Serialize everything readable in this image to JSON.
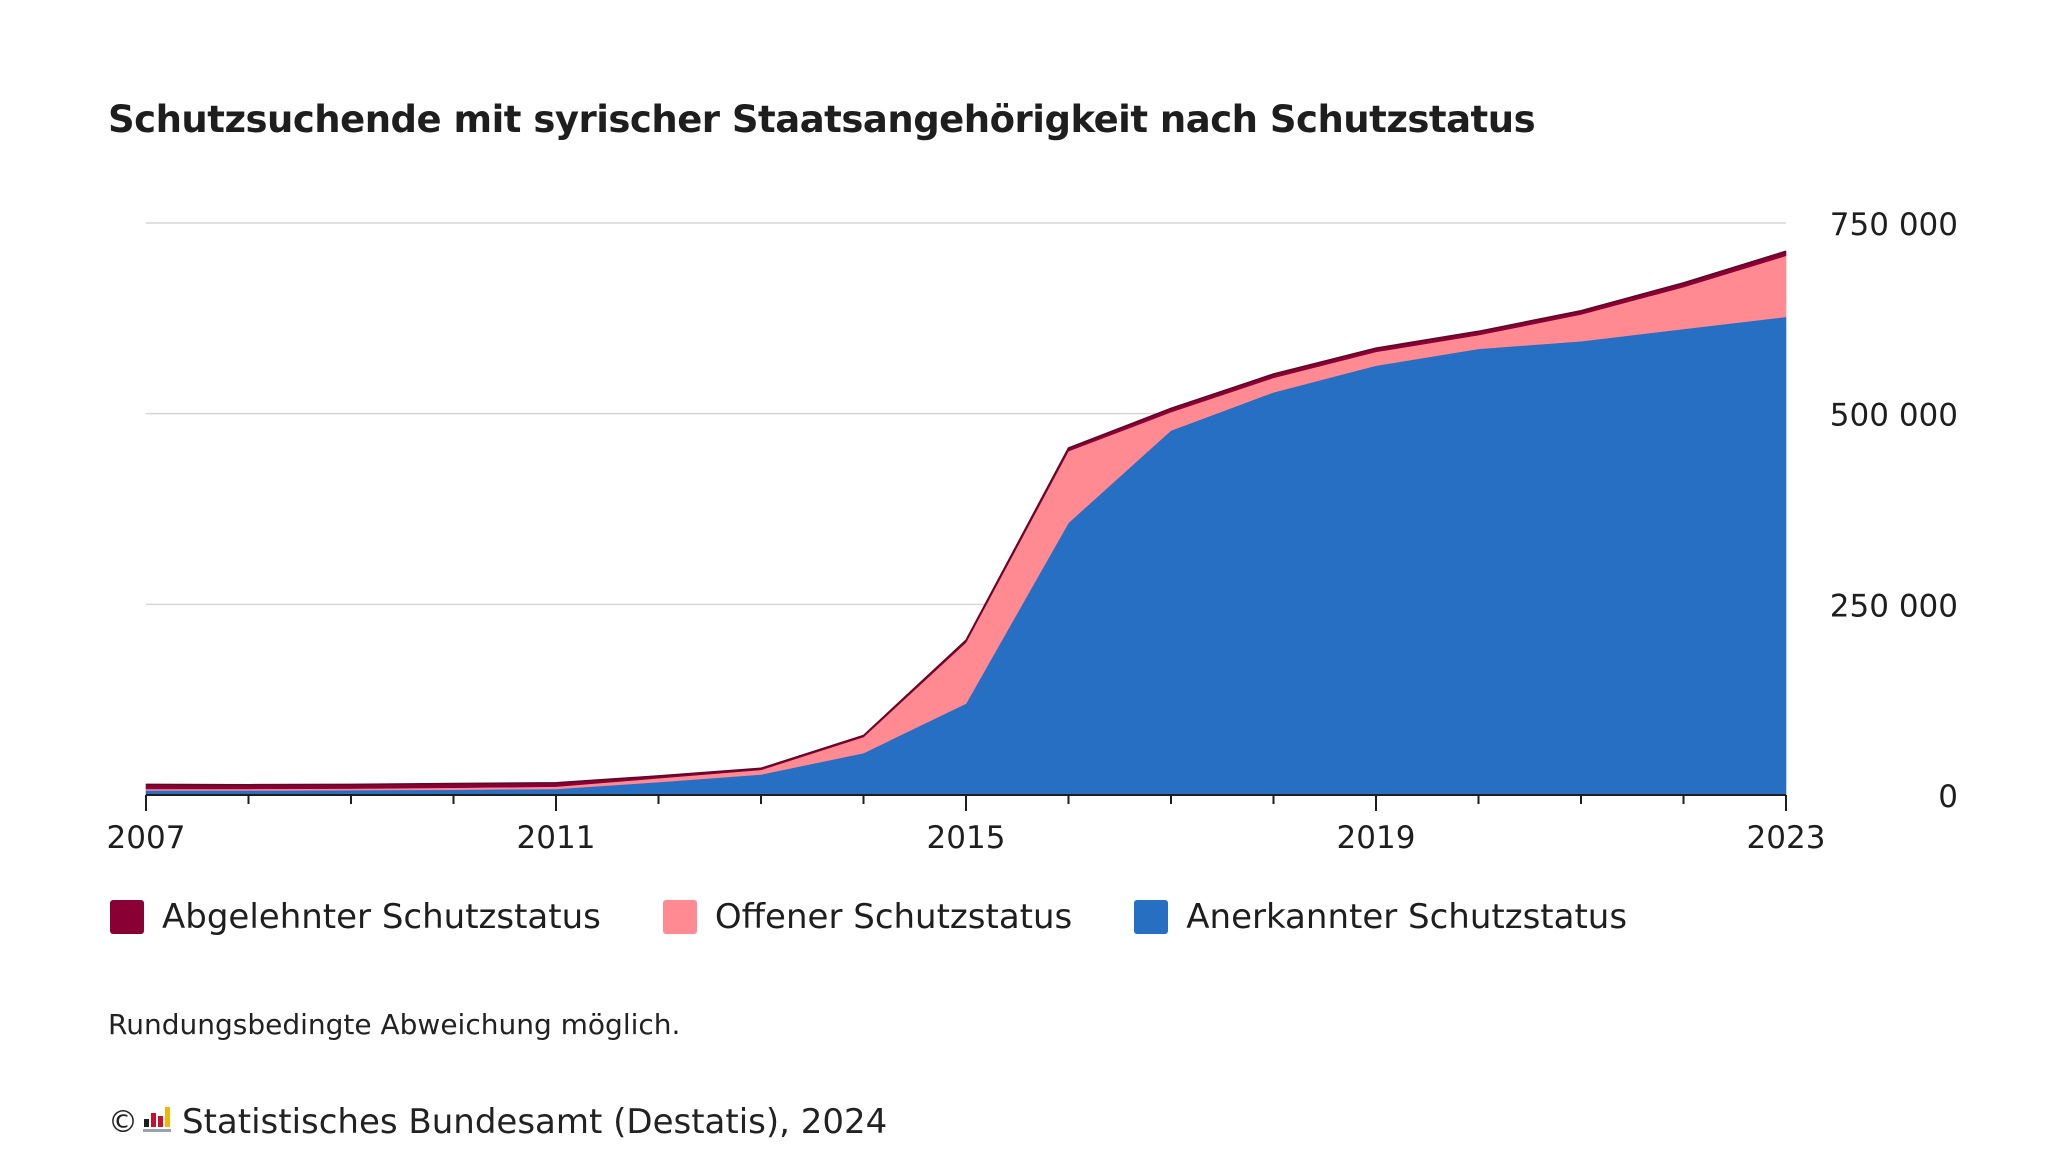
{
  "chart_data": {
    "type": "area",
    "stacked": true,
    "title": "Schutzsuchende mit syrischer Staatsangehörigkeit nach Schutzstatus",
    "x": [
      2007,
      2008,
      2009,
      2010,
      2011,
      2012,
      2013,
      2014,
      2015,
      2016,
      2017,
      2018,
      2019,
      2020,
      2021,
      2022,
      2023
    ],
    "series": [
      {
        "name": "Anerkannter Schutzstatus",
        "color": "#276fc2",
        "values": [
          6000,
          6000,
          6500,
          7000,
          8000,
          17000,
          27000,
          55000,
          120000,
          357000,
          478000,
          528000,
          563000,
          585000,
          595000,
          611000,
          627000
        ]
      },
      {
        "name": "Offener Schutzstatus",
        "color": "#ff8a91",
        "values": [
          2000,
          2000,
          2000,
          2500,
          3000,
          5000,
          6000,
          21000,
          80000,
          94000,
          24000,
          19000,
          18000,
          18000,
          35000,
          55000,
          80000
        ]
      },
      {
        "name": "Abgelehnter Schutzstatus",
        "color": "#890034",
        "values": [
          6000,
          5500,
          5500,
          5500,
          5000,
          3000,
          2000,
          2000,
          3000,
          4000,
          5000,
          5000,
          5000,
          5000,
          5000,
          5500,
          6000
        ]
      }
    ],
    "xlabel": "",
    "ylabel": "",
    "ylim": [
      0,
      750000
    ],
    "yticks": [
      0,
      250000,
      500000,
      750000
    ],
    "ytick_labels": [
      "0",
      "250 000",
      "500 000",
      "750 000"
    ],
    "xticks": [
      2007,
      2011,
      2015,
      2019,
      2023
    ],
    "xtick_labels": [
      "2007",
      "2011",
      "2015",
      "2019",
      "2023"
    ],
    "grid": "horizontal",
    "y_axis_side": "right",
    "legend_placement": "bottom-left",
    "legend_order": [
      "Abgelehnter Schutzstatus",
      "Offener Schutzstatus",
      "Anerkannter Schutzstatus"
    ]
  },
  "note": "Rundungsbedingte Abweichung möglich.",
  "footer": {
    "copyright_symbol": "©",
    "source": "Statistisches Bundesamt (Destatis), 2024",
    "logo_icon": "destatis-bar-logo-icon"
  }
}
